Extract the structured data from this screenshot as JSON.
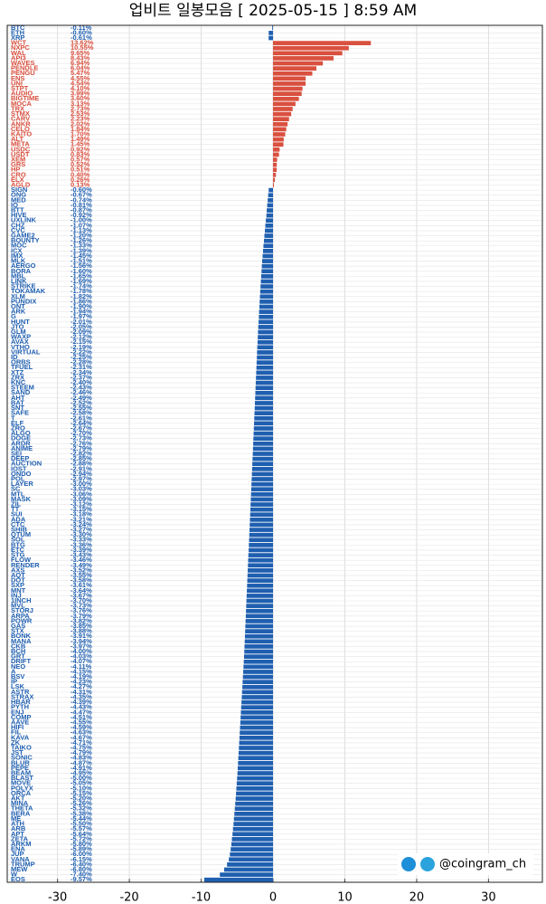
{
  "chart_data": {
    "type": "hbar",
    "title": "업비트 일봉모음 [ 2025-05-15 ]  8:59 AM",
    "watermark": "@coingram_ch",
    "positive_color": "#d9503f",
    "negative_color": "#1f5fb0",
    "xlim": [
      -37,
      37.5
    ],
    "xticks": [
      -30,
      -20,
      -10,
      0,
      10,
      20,
      30
    ],
    "grid": true,
    "categories": [
      "BTC",
      "ETH",
      "XRP",
      "WCT",
      "NXPC",
      "WAL",
      "API3",
      "WAVES",
      "PENDLE",
      "PENGU",
      "ENS",
      "UNI",
      "STPT",
      "AUDIO",
      "BIGTIME",
      "MOCA",
      "TRX",
      "STMX",
      "CARV",
      "ANKR",
      "CELO",
      "KAITO",
      "ALT",
      "META",
      "USDC",
      "USDT",
      "XEM",
      "GRS",
      "HP",
      "CRO",
      "ELX",
      "AGLD",
      "SIGN",
      "ONG",
      "MED",
      "IQ",
      "BTT",
      "HIVE",
      "UXLINK",
      "CHZ",
      "CVC",
      "GAME2",
      "BOUNTY",
      "MOC",
      "ICX",
      "IMX",
      "MLK",
      "AERGO",
      "BORA",
      "MBL",
      "LINK",
      "STRIKE",
      "TOKAMAK",
      "XLM",
      "PUNDIX",
      "ONT",
      "ARK",
      "G",
      "HUNT",
      "JTO",
      "GLM",
      "WAXP",
      "AVAX",
      "VTHO",
      "VIRTUAL",
      "ID",
      "ORBS",
      "TFUEL",
      "XTZ",
      "ZRX",
      "KNC",
      "STEEM",
      "SAND",
      "AHT",
      "BAT",
      "SNT",
      "SAFE",
      "T",
      "ELF",
      "ZRO",
      "ALGO",
      "DOGE",
      "ARDR",
      "ANIME",
      "SEI",
      "DEEP",
      "AUCTION",
      "IOST",
      "ONDO",
      "POL",
      "LAYER",
      "SC",
      "MTL",
      "MASK",
      "ZIL",
      "TT",
      "SUI",
      "ADA",
      "CTC",
      "SHIB",
      "QTUM",
      "SOL",
      "BTG",
      "ETC",
      "STG",
      "FLOW",
      "RENDER",
      "AXS",
      "AQT",
      "DOT",
      "SXP",
      "MNT",
      "INJ",
      "1INCH",
      "MVL",
      "STORJ",
      "ARPA",
      "POWR",
      "GAS",
      "STX",
      "BONK",
      "MANA",
      "CKB",
      "BCH",
      "GRT",
      "DRIFT",
      "NEO",
      "A",
      "BSV",
      "IP",
      "LSK",
      "ASTR",
      "STRAX",
      "HBAR",
      "PYTH",
      "ENJ",
      "COMP",
      "AAVE",
      "HIFI",
      "FIL",
      "KAVA",
      "ZK",
      "TAIKO",
      "JST",
      "SONIC",
      "BLUR",
      "PEPE",
      "BEAM",
      "BLAST",
      "MOVE",
      "POLYX",
      "ORCA",
      "AKT",
      "MINA",
      "THETA",
      "BERA",
      "ME",
      "ATH",
      "ARB",
      "APT",
      "ZETA",
      "ARKM",
      "ENA",
      "JUP",
      "VANA",
      "TRUMP",
      "MEW",
      "W",
      "EOS"
    ],
    "values": [
      -0.11,
      -0.6,
      -0.61,
      13.62,
      10.55,
      9.65,
      8.43,
      6.94,
      6.04,
      5.47,
      4.55,
      4.54,
      4.1,
      3.99,
      3.6,
      3.13,
      2.73,
      2.53,
      2.23,
      2.02,
      1.84,
      1.7,
      1.49,
      1.45,
      0.92,
      0.83,
      0.57,
      0.52,
      0.51,
      0.4,
      0.26,
      0.13,
      -0.6,
      -0.67,
      -0.74,
      -0.81,
      -0.87,
      -0.92,
      -1.0,
      -1.07,
      -1.13,
      -1.2,
      -1.26,
      -1.33,
      -1.39,
      -1.45,
      -1.51,
      -1.56,
      -1.6,
      -1.65,
      -1.69,
      -1.74,
      -1.78,
      -1.82,
      -1.86,
      -1.9,
      -1.94,
      -1.97,
      -2.01,
      -2.05,
      -2.09,
      -2.12,
      -2.15,
      -2.19,
      -2.22,
      -2.25,
      -2.28,
      -2.31,
      -2.34,
      -2.37,
      -2.4,
      -2.43,
      -2.46,
      -2.49,
      -2.52,
      -2.55,
      -2.58,
      -2.61,
      -2.64,
      -2.67,
      -2.7,
      -2.73,
      -2.76,
      -2.79,
      -2.82,
      -2.85,
      -2.88,
      -2.91,
      -2.94,
      -2.97,
      -3.0,
      -3.03,
      -3.06,
      -3.09,
      -3.12,
      -3.15,
      -3.18,
      -3.21,
      -3.24,
      -3.27,
      -3.3,
      -3.33,
      -3.36,
      -3.39,
      -3.43,
      -3.46,
      -3.49,
      -3.52,
      -3.55,
      -3.58,
      -3.61,
      -3.64,
      -3.67,
      -3.7,
      -3.73,
      -3.76,
      -3.79,
      -3.82,
      -3.85,
      -3.88,
      -3.91,
      -3.94,
      -3.97,
      -4.0,
      -4.03,
      -4.07,
      -4.11,
      -4.15,
      -4.19,
      -4.23,
      -4.27,
      -4.31,
      -4.35,
      -4.39,
      -4.43,
      -4.47,
      -4.51,
      -4.55,
      -4.59,
      -4.63,
      -4.67,
      -4.71,
      -4.75,
      -4.79,
      -4.83,
      -4.87,
      -4.91,
      -4.95,
      -5.0,
      -5.05,
      -5.1,
      -5.15,
      -5.2,
      -5.26,
      -5.32,
      -5.38,
      -5.44,
      -5.5,
      -5.57,
      -5.64,
      -5.72,
      -5.8,
      -5.89,
      -6.0,
      -6.15,
      -6.4,
      -6.8,
      -7.4,
      -9.57
    ],
    "value_labels": [
      "-0.11%",
      "-0.60%",
      "-0.61%",
      "13.62%",
      "10.55%",
      "9.65%",
      "8.43%",
      "6.94%",
      "6.04%",
      "5.47%",
      "4.55%",
      "4.54%",
      "4.10%",
      "3.99%",
      "3.60%",
      "3.13%",
      "2.73%",
      "2.53%",
      "2.23%",
      "2.02%",
      "1.84%",
      "1.70%",
      "1.49%",
      "1.45%",
      "0.92%",
      "0.83%",
      "0.57%",
      "0.52%",
      "0.51%",
      "0.40%",
      "0.26%",
      "0.13%",
      "-0.60%",
      "-0.67%",
      "-0.74%",
      "-0.81%",
      "-0.87%",
      "-0.92%",
      "-1.00%",
      "-1.07%",
      "-1.13%",
      "-1.20%",
      "-1.26%",
      "-1.33%",
      "-1.39%",
      "-1.45%",
      "-1.51%",
      "-1.56%",
      "-1.60%",
      "-1.65%",
      "-1.69%",
      "-1.74%",
      "-1.78%",
      "-1.82%",
      "-1.86%",
      "-1.90%",
      "-1.94%",
      "-1.97%",
      "-2.01%",
      "-2.05%",
      "-2.09%",
      "-2.12%",
      "-2.15%",
      "-2.19%",
      "-2.22%",
      "-2.25%",
      "-2.28%",
      "-2.31%",
      "-2.34%",
      "-2.37%",
      "-2.40%",
      "-2.43%",
      "-2.46%",
      "-2.49%",
      "-2.52%",
      "-2.55%",
      "-2.58%",
      "-2.61%",
      "-2.64%",
      "-2.67%",
      "-2.70%",
      "-2.73%",
      "-2.76%",
      "-2.79%",
      "-2.82%",
      "-2.85%",
      "-2.88%",
      "-2.91%",
      "-2.94%",
      "-2.97%",
      "-3.00%",
      "-3.03%",
      "-3.06%",
      "-3.09%",
      "-3.12%",
      "-3.15%",
      "-3.18%",
      "-3.21%",
      "-3.24%",
      "-3.27%",
      "-3.30%",
      "-3.33%",
      "-3.36%",
      "-3.39%",
      "-3.43%",
      "-3.46%",
      "-3.49%",
      "-3.52%",
      "-3.55%",
      "-3.58%",
      "-3.61%",
      "-3.64%",
      "-3.67%",
      "-3.70%",
      "-3.73%",
      "-3.76%",
      "-3.79%",
      "-3.82%",
      "-3.85%",
      "-3.88%",
      "-3.91%",
      "-3.94%",
      "-3.97%",
      "-4.00%",
      "-4.03%",
      "-4.07%",
      "-4.11%",
      "-4.15%",
      "-4.19%",
      "-4.23%",
      "-4.27%",
      "-4.31%",
      "-4.35%",
      "-4.39%",
      "-4.43%",
      "-4.47%",
      "-4.51%",
      "-4.55%",
      "-4.59%",
      "-4.63%",
      "-4.67%",
      "-4.71%",
      "-4.75%",
      "-4.79%",
      "-4.83%",
      "-4.87%",
      "-4.91%",
      "-4.95%",
      "-5.00%",
      "-5.05%",
      "-5.10%",
      "-5.15%",
      "-5.20%",
      "-5.26%",
      "-5.32%",
      "-5.38%",
      "-5.44%",
      "-5.50%",
      "-5.57%",
      "-5.64%",
      "-5.72%",
      "-5.80%",
      "-5.89%",
      "-6.00%",
      "-6.15%",
      "-6.40%",
      "-6.80%",
      "-7.40%",
      "-9.57%"
    ]
  }
}
